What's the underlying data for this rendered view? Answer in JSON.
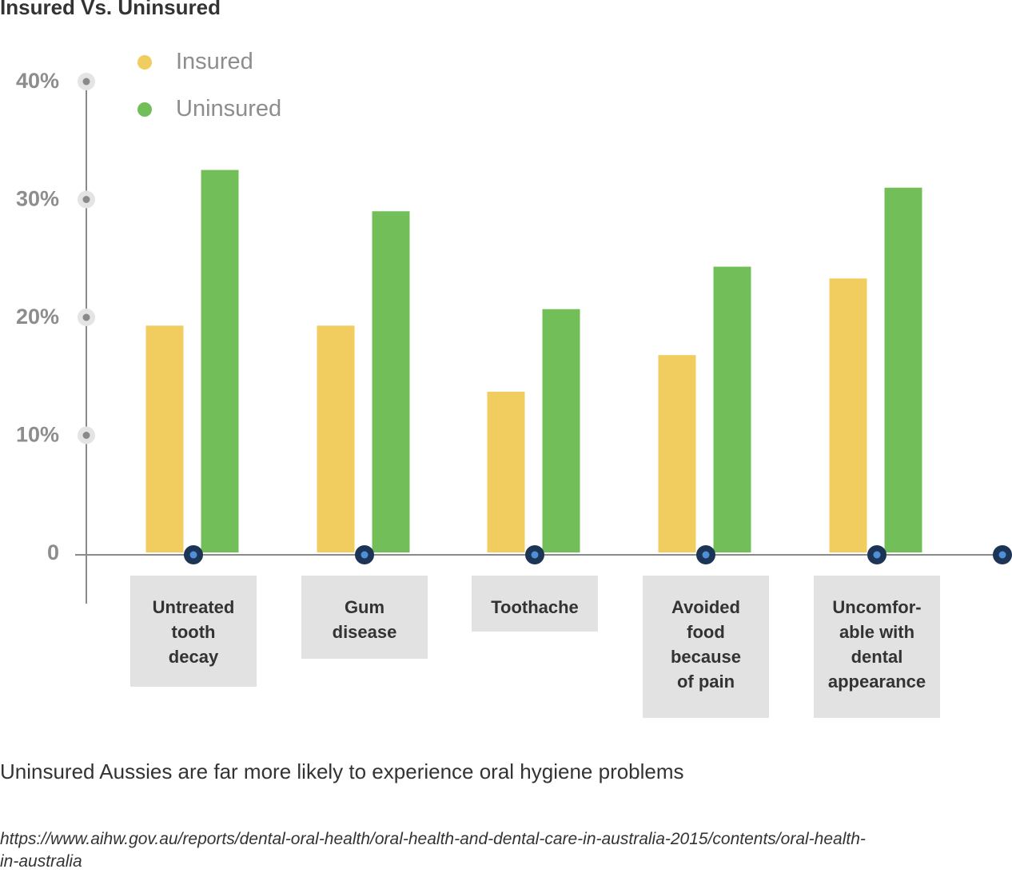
{
  "chart_data": {
    "type": "bar",
    "title": "Insured Vs. Uninsured",
    "categories": [
      "Untreated\ntooth\ndecay",
      "Gum\ndisease",
      "Toothache",
      "Avoided\nfood\nbecause\nof pain",
      "Uncomfor-\nable with\ndental\nappearance"
    ],
    "series": [
      {
        "name": "Insured",
        "values": [
          19.3,
          19.3,
          13.7,
          16.8,
          23.3
        ]
      },
      {
        "name": "Uninsured",
        "values": [
          32.5,
          29.0,
          20.7,
          24.3,
          31.0
        ]
      }
    ],
    "yticks": [
      "0",
      "10%",
      "20%",
      "30%",
      "40%"
    ],
    "ytick_values": [
      0,
      10,
      20,
      30,
      40
    ],
    "ylim": [
      0,
      40
    ],
    "legend_position": "top-left",
    "grid": false
  },
  "colors": {
    "insured": "#f0cd5e",
    "uninsured": "#72bf59",
    "axis": "#8a8a8a",
    "marker_dark": "#1c3557",
    "marker_light": "#4f8fd8",
    "tick_text": "#8d8d8d"
  },
  "caption": "Uninsured Aussies are far more likely to experience oral hygiene problems",
  "source": "https://www.aihw.gov.au/reports/dental-oral-health/oral-health-and-dental-care-in-australia-2015/contents/oral-health-in-australia"
}
